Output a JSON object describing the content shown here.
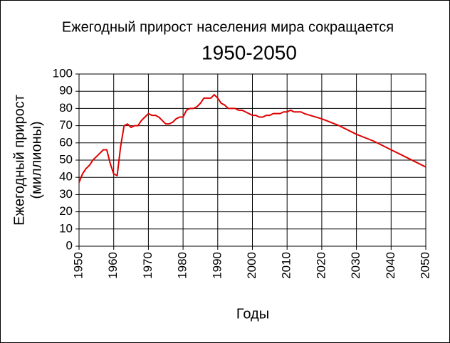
{
  "chart_data": {
    "type": "line",
    "title": "Ежегодный прирост населения мира сокращается",
    "subtitle": "1950-2050",
    "xlabel": "Годы",
    "ylabel": [
      "Ежегодный прирост",
      "(миллионы)"
    ],
    "x": [
      1950,
      1951,
      1952,
      1953,
      1954,
      1955,
      1956,
      1957,
      1958,
      1959,
      1960,
      1961,
      1962,
      1963,
      1964,
      1965,
      1966,
      1967,
      1968,
      1969,
      1970,
      1971,
      1972,
      1973,
      1974,
      1975,
      1976,
      1977,
      1978,
      1979,
      1980,
      1981,
      1982,
      1983,
      1984,
      1985,
      1986,
      1987,
      1988,
      1989,
      1990,
      1991,
      1992,
      1993,
      1994,
      1995,
      1996,
      1997,
      1998,
      1999,
      2000,
      2001,
      2002,
      2003,
      2004,
      2005,
      2006,
      2007,
      2008,
      2009,
      2010,
      2011,
      2012,
      2013,
      2014,
      2015,
      2020,
      2025,
      2030,
      2035,
      2040,
      2045,
      2050
    ],
    "series": [
      {
        "name": "Ежегодный прирост",
        "color": "#e00000",
        "values": [
          37,
          42,
          45,
          47,
          50,
          52,
          54,
          56,
          56,
          48,
          42,
          41,
          58,
          70,
          71,
          69,
          70,
          70,
          73,
          75,
          77,
          76,
          76,
          75,
          73,
          71,
          71,
          72,
          74,
          75,
          75,
          79,
          80,
          80,
          81,
          83,
          86,
          86,
          86,
          88,
          86,
          83,
          82,
          80,
          80,
          80,
          79,
          79,
          78,
          77,
          76,
          76,
          75,
          75,
          76,
          76,
          77,
          77,
          77,
          78,
          78,
          79,
          78,
          78,
          78,
          77,
          74,
          70,
          65,
          61,
          56,
          51,
          46
        ]
      }
    ],
    "xlim": [
      1950,
      2050
    ],
    "xticks": [
      1950,
      1960,
      1970,
      1980,
      1990,
      2000,
      2010,
      2020,
      2030,
      2040,
      2050
    ],
    "ylim": [
      0,
      100
    ],
    "yticks": [
      0,
      10,
      20,
      30,
      40,
      50,
      60,
      70,
      80,
      90,
      100
    ],
    "grid": true
  }
}
